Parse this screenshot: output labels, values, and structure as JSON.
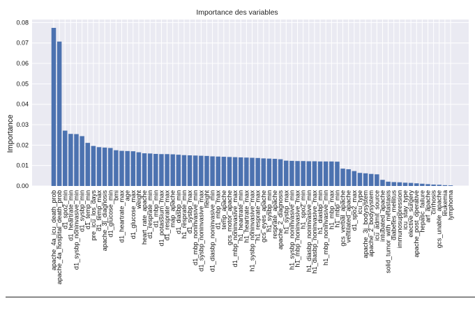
{
  "chart_data": {
    "type": "bar",
    "title": "Importance des variables",
    "xlabel": "",
    "ylabel": "Importance",
    "ylim": [
      0,
      0.0815
    ],
    "yticks": [
      "0.00",
      "0.01",
      "0.02",
      "0.03",
      "0.04",
      "0.05",
      "0.06",
      "0.07",
      "0.08"
    ],
    "grid": true,
    "bar_color": "#4c72b0",
    "plot_background": "#eaeaf2",
    "categories": [
      "apache_4a_icu_death_prob",
      "apache_4a_hospital_death_prob",
      "d1_spo2_min",
      "d1_heartrate_min",
      "d1_sysbp_noninvasive_min",
      "d1_sysbp_min",
      "d1_temp_min",
      "pre_icu_los_days",
      "d1_temp_max",
      "apache_3j_diagnosis",
      "d1_glucose_min",
      "bmi",
      "d1_heartrate_max",
      "age",
      "d1_glucose_max",
      "weight",
      "heart_rate_apache",
      "d1_resprate_min",
      "d1_mbp_min",
      "d1_potassium_max",
      "d1_resprate_max",
      "map_apache",
      "d1_diasbp_min",
      "h1_resprate_min",
      "d1_sysbp_max",
      "d1_mbp_noninvasive_min",
      "d1_sysbp_noninvasive_max",
      "height",
      "d1_diasbp_noninvasive_min",
      "d1_mbp_max",
      "temp_apache",
      "gcs_motor_apache",
      "d1_mbp_noninvasive_max",
      "h1_heartrate_min",
      "h1_heartrate_max",
      "h1_sysbp_noninvasive_max",
      "h1_resprate_max",
      "gcs_eyes_apache",
      "h1_sysbp_min",
      "resprate_apache",
      "apache_2_diagnosis",
      "h1_sysbp_max",
      "h1_sysbp_noninvasive_min",
      "h1_mbp_noninvasive_max",
      "h1_spo2_min",
      "h1_diasbp_noninvasive_min",
      "h1_diasbp_noninvasive_max",
      "h1_diasbp_min",
      "h1_mbp_noninvasive_min",
      "h1_mbp_max",
      "h1_mbp_min",
      "gcs_verbal_apache",
      "ventilated_apache",
      "d1_spo2_max",
      "icu_type",
      "apache_3j_bodysystem",
      "apache_2_bodysystem",
      "icu_admit_source",
      "intubated_apache",
      "solid_tumor_with_metastasis",
      "diabetes_mellitus",
      "immunosuppression",
      "icu_stay_type",
      "elective_surgery",
      "apache_post_operative",
      "hepatic_failure",
      "arf_apache",
      "cirrhosis",
      "gcs_unable_apache",
      "leukemia",
      "lymphoma"
    ],
    "values": [
      0.0774,
      0.0707,
      0.0271,
      0.0255,
      0.0254,
      0.0244,
      0.0211,
      0.0196,
      0.019,
      0.0188,
      0.0186,
      0.0175,
      0.0172,
      0.0171,
      0.017,
      0.0165,
      0.016,
      0.0159,
      0.0157,
      0.0156,
      0.0156,
      0.0155,
      0.0153,
      0.0151,
      0.015,
      0.0149,
      0.0148,
      0.0147,
      0.0145,
      0.0144,
      0.0143,
      0.0142,
      0.0141,
      0.014,
      0.0139,
      0.0138,
      0.0137,
      0.0135,
      0.0134,
      0.0133,
      0.0131,
      0.0124,
      0.0123,
      0.0122,
      0.0122,
      0.0121,
      0.0121,
      0.012,
      0.012,
      0.012,
      0.0119,
      0.0085,
      0.0082,
      0.0073,
      0.0064,
      0.0062,
      0.0059,
      0.0057,
      0.003,
      0.0021,
      0.0019,
      0.0018,
      0.0016,
      0.0015,
      0.0013,
      0.0011,
      0.0009,
      0.0007,
      0.0006,
      0.0004,
      0.0003
    ]
  }
}
